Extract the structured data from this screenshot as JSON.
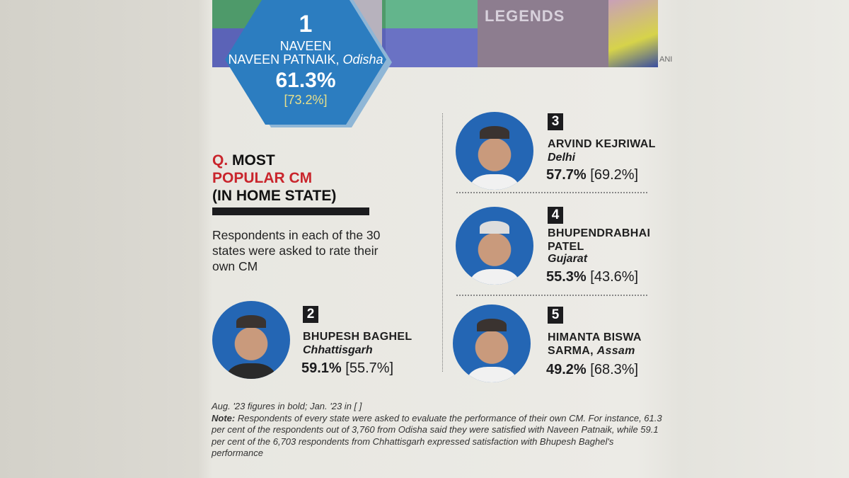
{
  "top_image": {
    "banner_text": "LEGENDS",
    "credit": "ANI"
  },
  "heading": {
    "q": "Q.",
    "line1": "MOST",
    "line2_red": "POPULAR CM",
    "line3": "(IN HOME STATE)"
  },
  "description": "Respondents in each of the 30 states were asked to rate their own CM",
  "ranks": [
    {
      "rank": "1",
      "name": "NAVEEN PATNAIK,",
      "state": "Odisha",
      "aug": "61.3%",
      "jan": "[73.2%]"
    },
    {
      "rank": "2",
      "name": "BHUPESH BAGHEL",
      "state": "Chhattisgarh",
      "aug": "59.1%",
      "jan": "[55.7%]"
    },
    {
      "rank": "3",
      "name": "ARVIND KEJRIWAL",
      "state": "Delhi",
      "aug": "57.7%",
      "jan": "[69.2%]"
    },
    {
      "rank": "4",
      "name_line1": "BHUPENDRABHAI",
      "name_line2": "PATEL",
      "state": "Gujarat",
      "aug": "55.3%",
      "jan": "[43.6%]"
    },
    {
      "rank": "5",
      "name_line1": "HIMANTA BISWA",
      "name_line2": "SARMA,",
      "state": "Assam",
      "aug": "49.2%",
      "jan": "[68.3%]"
    }
  ],
  "footnote": {
    "legend": "Aug. '23 figures in bold; Jan. '23 in [ ]",
    "note_label": "Note:",
    "note": " Respondents of every state were asked to evaluate the performance of their own CM. For instance, 61.3 per cent of the respondents out of 3,760 from Odisha said they were satisfied with Naveen Patnaik, while 59.1 per cent of the 6,703 respondents from Chhattisgarh expressed satisfaction with Bhupesh Baghel's performance"
  },
  "colors": {
    "hex_blue": "#2c7dc0",
    "accent_red": "#c9252c",
    "photo_bg": "#2466b4"
  }
}
